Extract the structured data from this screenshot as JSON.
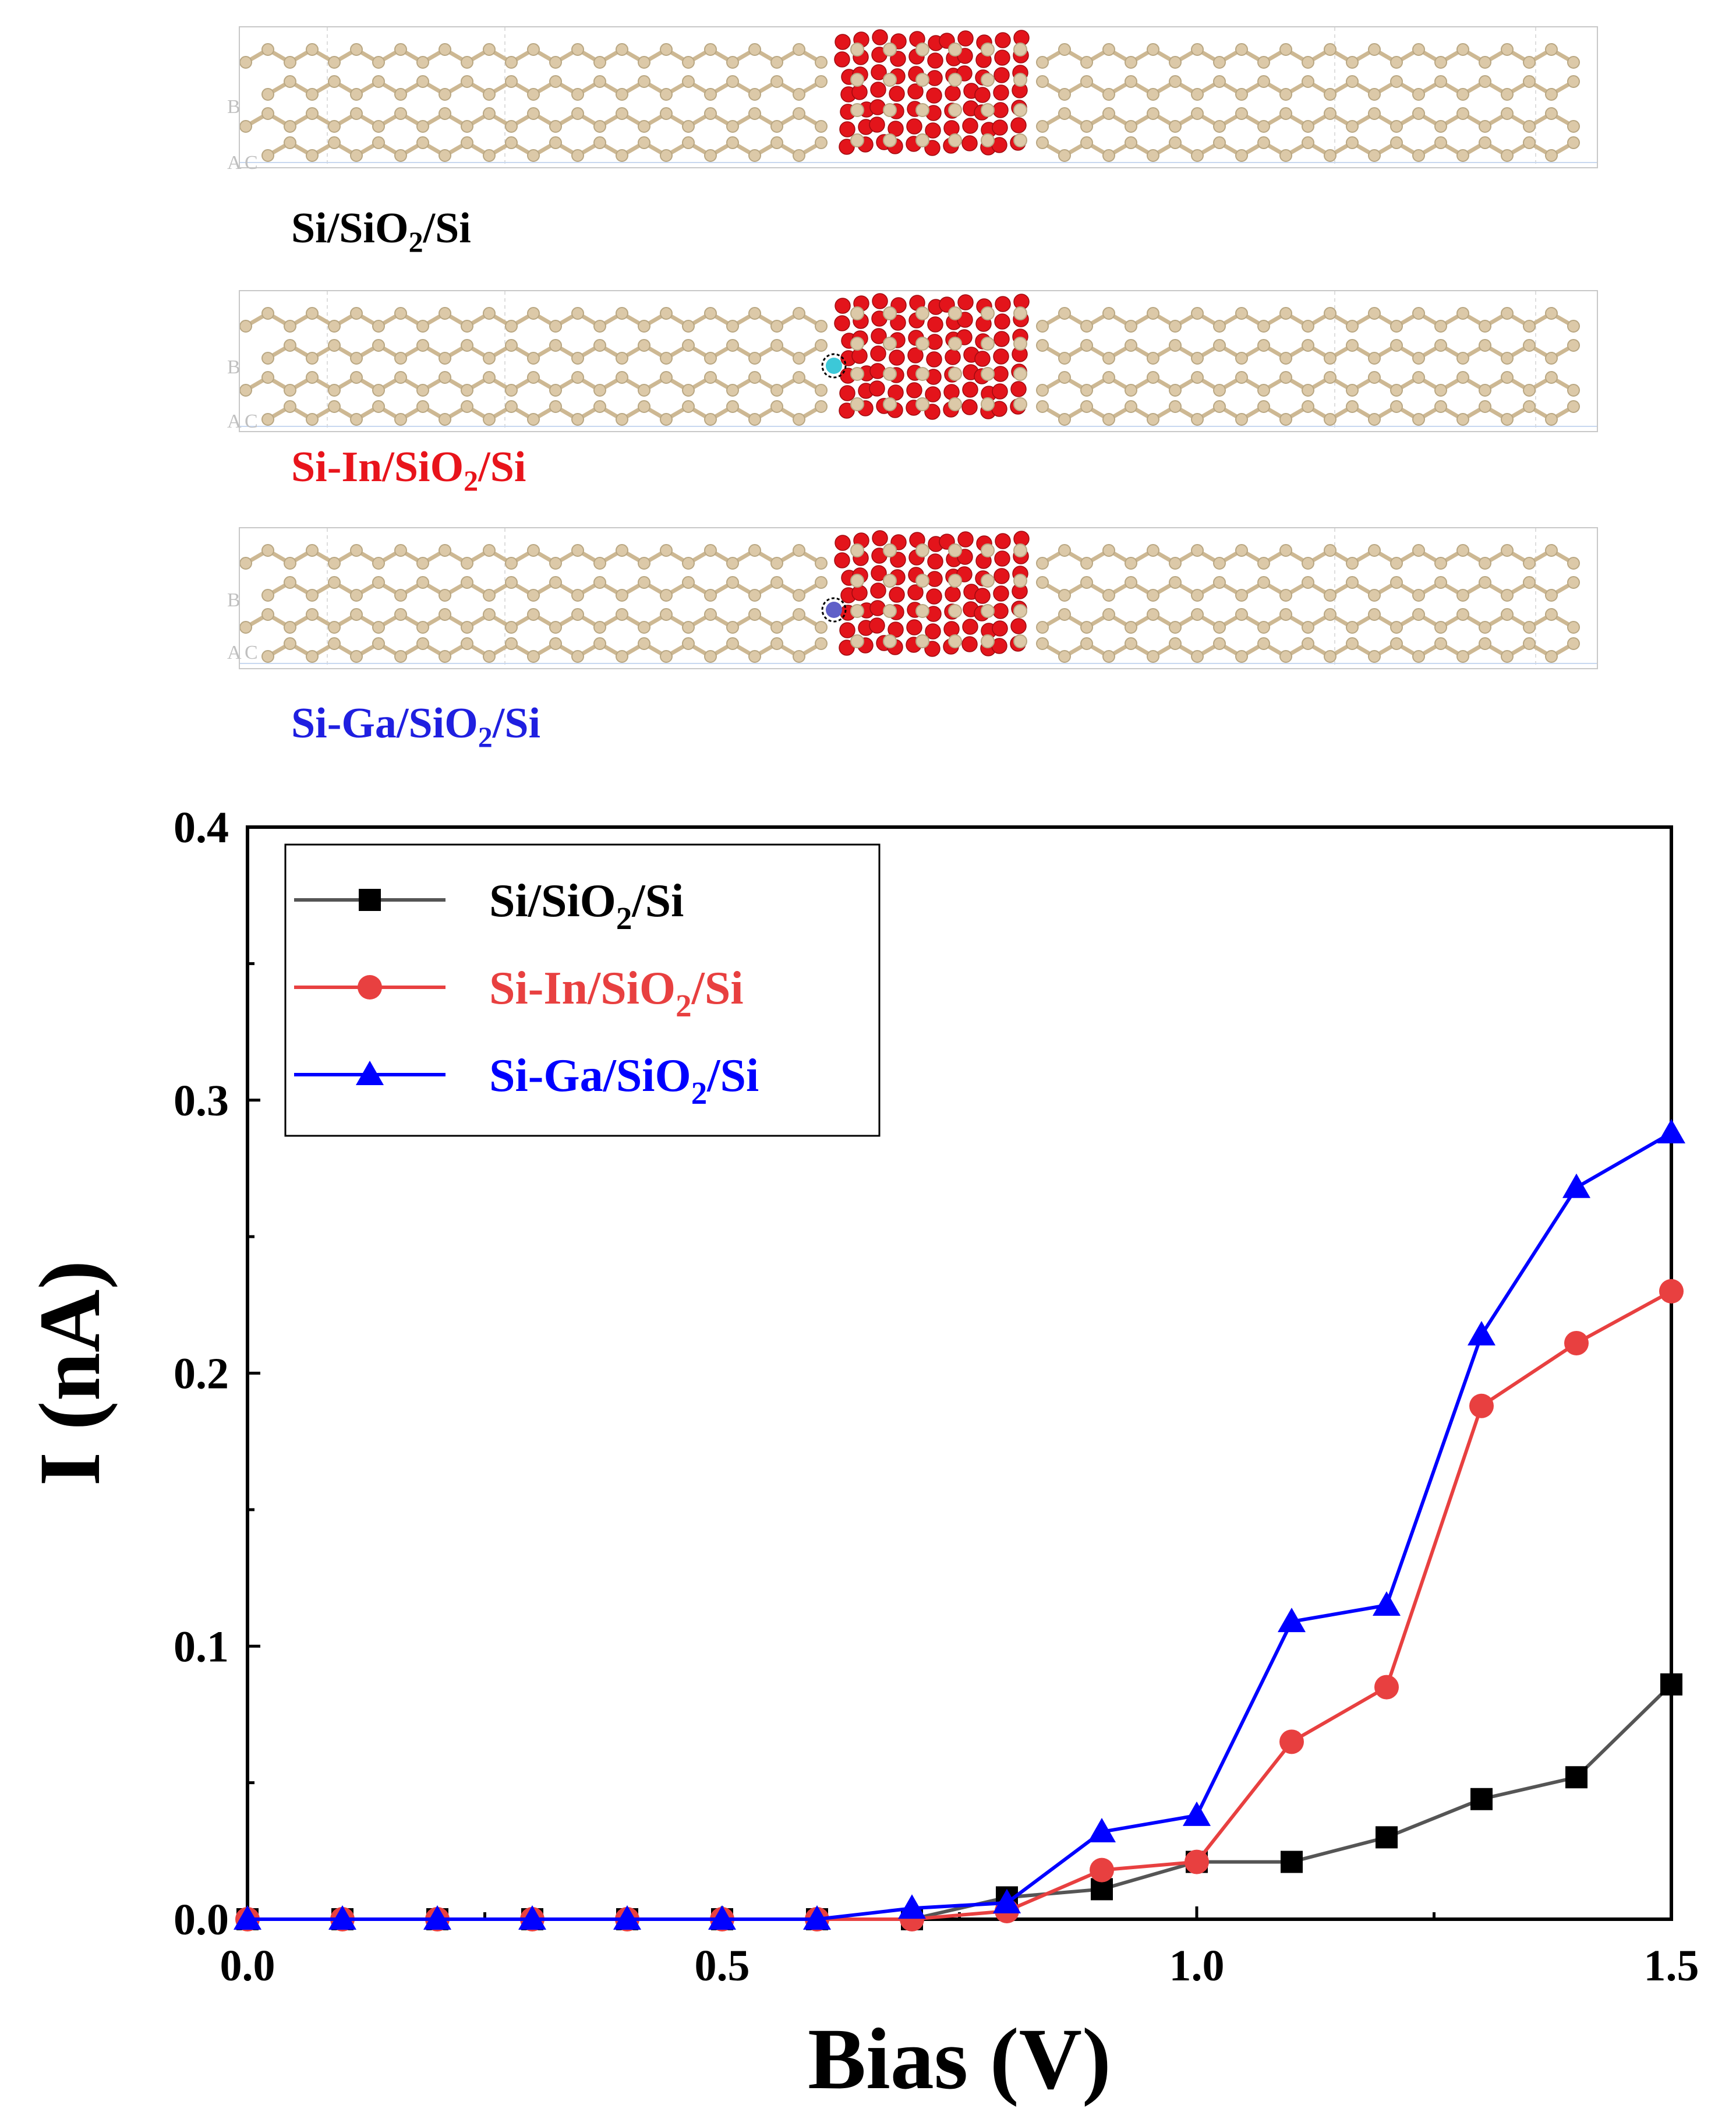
{
  "structures": [
    {
      "label": "Si/SiO2/Si",
      "parts": [
        "Si/SiO",
        "2",
        "/Si"
      ],
      "color": "#000000",
      "dopant": ""
    },
    {
      "label": "Si-In/SiO2/Si",
      "parts": [
        "Si-In/SiO",
        "2",
        "/Si"
      ],
      "color": "#e8141b",
      "dopant": "In",
      "dopant_color": "#3cc8d8"
    },
    {
      "label": "Si-Ga/SiO2/Si",
      "parts": [
        "Si-Ga/SiO",
        "2",
        "/Si"
      ],
      "color": "#1f1fe0",
      "dopant": "Ga",
      "dopant_color": "#6060c8"
    }
  ],
  "axis_letters": {
    "b": "B",
    "a": "A",
    "c": "C"
  },
  "colors": {
    "si_atom": "#dcc9a8",
    "o_atom": "#e3141b",
    "bond": "#cdb893"
  },
  "chart_data": {
    "type": "line",
    "xlabel": "Bias (V)",
    "ylabel": "I (nA)",
    "xlim": [
      0.0,
      1.5
    ],
    "ylim": [
      0.0,
      0.4
    ],
    "xticks": [
      "0.0",
      "0.5",
      "1.0",
      "1.5"
    ],
    "yticks": [
      "0.0",
      "0.1",
      "0.2",
      "0.3",
      "0.4"
    ],
    "x": [
      0.0,
      0.1,
      0.2,
      0.3,
      0.4,
      0.5,
      0.6,
      0.7,
      0.8,
      0.9,
      1.0,
      1.1,
      1.2,
      1.3,
      1.4,
      1.5
    ],
    "legend_position": "top-left",
    "series": [
      {
        "name": "Si/SiO2/Si",
        "name_parts": [
          "Si/SiO",
          "2",
          "/Si"
        ],
        "color": "#000000",
        "line_color": "#555555",
        "marker": "square",
        "values": [
          0.0,
          0.0,
          0.0,
          0.0,
          0.0,
          0.0,
          0.0,
          0.0,
          0.008,
          0.011,
          0.021,
          0.021,
          0.03,
          0.044,
          0.052,
          0.086
        ]
      },
      {
        "name": "Si-In/SiO2/Si",
        "name_parts": [
          "Si-In/SiO",
          "2",
          "/Si"
        ],
        "color": "#e84040",
        "line_color": "#e84040",
        "marker": "circle",
        "values": [
          0.0,
          0.0,
          0.0,
          0.0,
          0.0,
          0.0,
          0.0,
          0.0,
          0.003,
          0.018,
          0.021,
          0.065,
          0.085,
          0.188,
          0.211,
          0.23
        ]
      },
      {
        "name": "Si-Ga/SiO2/Si",
        "name_parts": [
          "Si-Ga/SiO",
          "2",
          "/Si"
        ],
        "color": "#0000ff",
        "line_color": "#0000ff",
        "marker": "triangle",
        "values": [
          0.0,
          0.0,
          0.0,
          0.0,
          0.0,
          0.0,
          0.0,
          0.004,
          0.006,
          0.032,
          0.038,
          0.109,
          0.115,
          0.214,
          0.268,
          0.288
        ]
      }
    ]
  }
}
